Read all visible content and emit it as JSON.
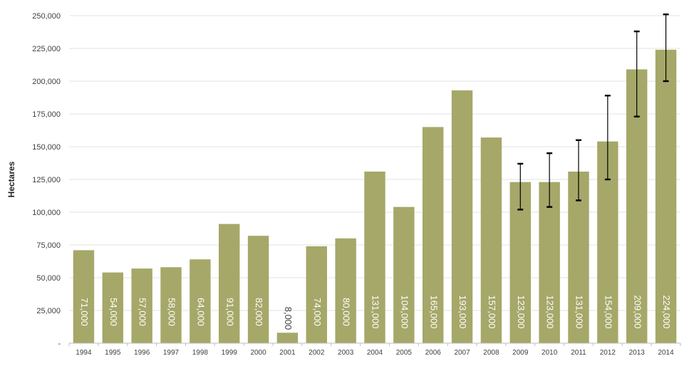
{
  "chart_data": {
    "type": "bar",
    "title": "",
    "xlabel": "",
    "ylabel": "Hectares",
    "ylim": [
      0,
      250000
    ],
    "y_ticks": [
      "-",
      "25,000",
      "50,000",
      "75,000",
      "100,000",
      "125,000",
      "150,000",
      "175,000",
      "200,000",
      "225,000",
      "250,000"
    ],
    "grid": true,
    "legend": "none",
    "bar_color": "#a5a868",
    "categories": [
      "1994",
      "1995",
      "1996",
      "1997",
      "1998",
      "1999",
      "2000",
      "2001",
      "2002",
      "2003",
      "2004",
      "2005",
      "2006",
      "2007",
      "2008",
      "2009",
      "2010",
      "2011",
      "2012",
      "2013",
      "2014"
    ],
    "values": [
      71000,
      54000,
      57000,
      58000,
      64000,
      91000,
      82000,
      8000,
      74000,
      80000,
      131000,
      104000,
      165000,
      193000,
      157000,
      123000,
      123000,
      131000,
      154000,
      209000,
      224000
    ],
    "data_labels": [
      "71,000",
      "54,000",
      "57,000",
      "58,000",
      "64,000",
      "91,000",
      "82,000",
      "8,000",
      "74,000",
      "80,000",
      "131,000",
      "104,000",
      "165,000",
      "193,000",
      "157,000",
      "123,000",
      "123,000",
      "131,000",
      "154,000",
      "209,000",
      "224,000"
    ],
    "error_bars": [
      {
        "category": "2009",
        "low": 102000,
        "high": 137000
      },
      {
        "category": "2010",
        "low": 104000,
        "high": 145000
      },
      {
        "category": "2011",
        "low": 109000,
        "high": 155000
      },
      {
        "category": "2012",
        "low": 125000,
        "high": 189000
      },
      {
        "category": "2013",
        "low": 173000,
        "high": 238000
      },
      {
        "category": "2014",
        "low": 200000,
        "high": 251000
      }
    ]
  }
}
